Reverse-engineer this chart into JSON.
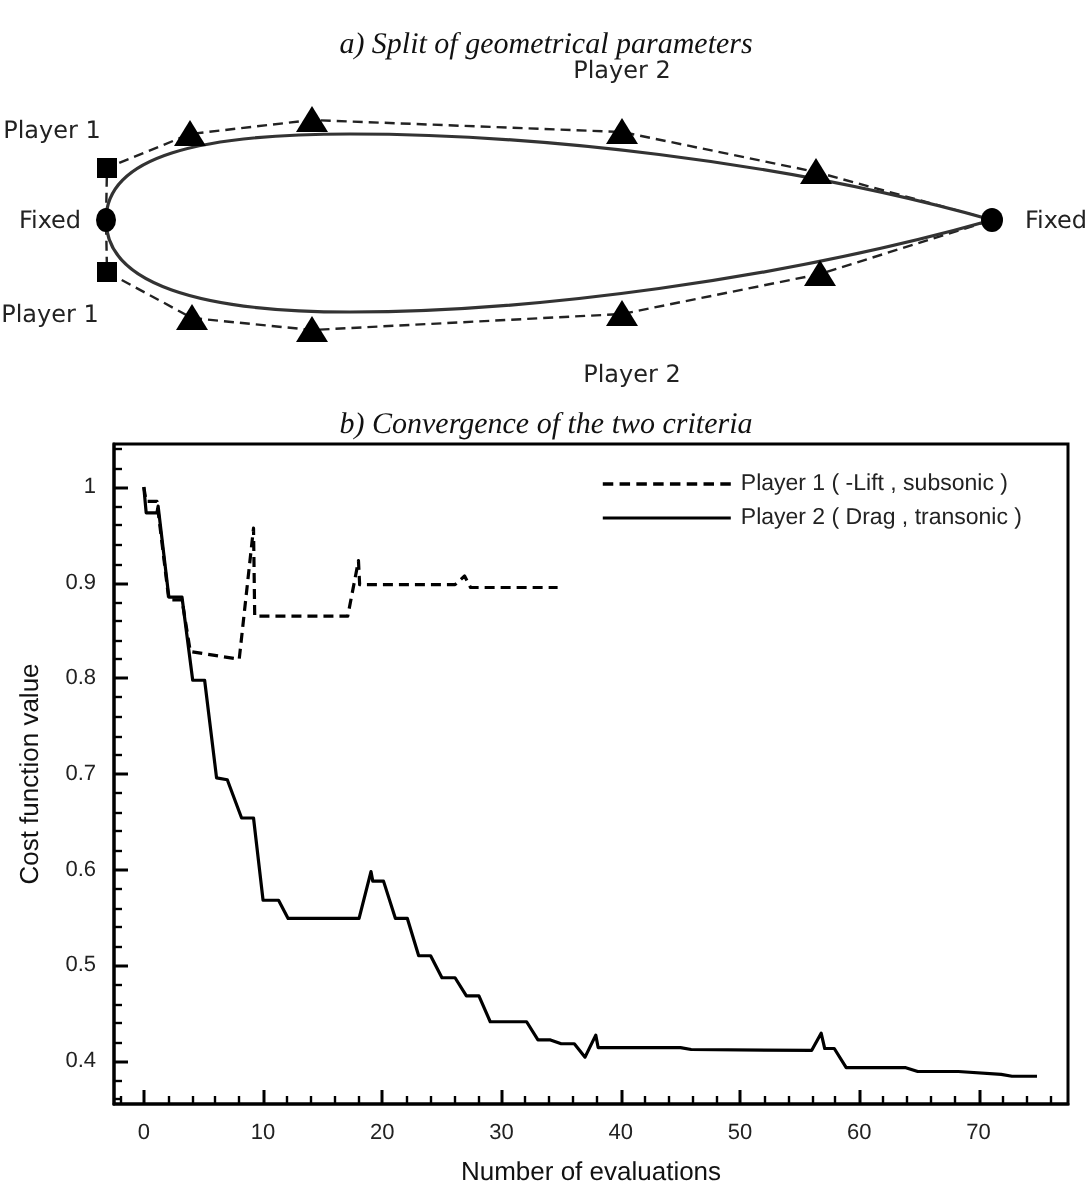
{
  "chart_data": [
    {
      "type": "other",
      "title": "a) Split of geometrical parameters",
      "annotations": [
        "Player 2",
        "Player 1",
        "Fixed",
        "Fixed",
        "Player 1",
        "Player 2"
      ]
    },
    {
      "type": "line",
      "title": "b) Convergence of the two criteria",
      "xlabel": "Number of evaluations",
      "ylabel": "Cost function value",
      "xlim": [
        -2.5,
        77.5
      ],
      "ylim": [
        0.355,
        1.045
      ],
      "xticks": [
        {
          "value": -2,
          "label": null
        },
        0,
        {
          "value": 2,
          "label": null
        },
        {
          "value": 4,
          "label": null
        },
        {
          "value": 6,
          "label": null
        },
        {
          "value": 8,
          "label": null
        },
        10,
        {
          "value": 12,
          "label": null
        },
        {
          "value": 14,
          "label": null
        },
        {
          "value": 16,
          "label": null
        },
        {
          "value": 18,
          "label": null
        },
        20,
        {
          "value": 22,
          "label": null
        },
        {
          "value": 24,
          "label": null
        },
        {
          "value": 26,
          "label": null
        },
        {
          "value": 28,
          "label": null
        },
        30,
        {
          "value": 32,
          "label": null
        },
        {
          "value": 34,
          "label": null
        },
        {
          "value": 36,
          "label": null
        },
        {
          "value": 38,
          "label": null
        },
        40,
        {
          "value": 42,
          "label": null
        },
        {
          "value": 44,
          "label": null
        },
        {
          "value": 46,
          "label": null
        },
        {
          "value": 48,
          "label": null
        },
        50,
        {
          "value": 52,
          "label": null
        },
        {
          "value": 54,
          "label": null
        },
        {
          "value": 56,
          "label": null
        },
        {
          "value": 58,
          "label": null
        },
        60,
        {
          "value": 62,
          "label": null
        },
        {
          "value": 64,
          "label": null
        },
        {
          "value": 66,
          "label": null
        },
        {
          "value": 68,
          "label": null
        },
        70,
        {
          "value": 72,
          "label": null
        },
        {
          "value": 74,
          "label": null
        },
        {
          "value": 76,
          "label": null
        }
      ],
      "yticks": [
        {
          "value": 0.36,
          "label": null
        },
        {
          "value": 0.38,
          "label": null
        },
        0.4,
        {
          "value": 0.42,
          "label": null
        },
        {
          "value": 0.44,
          "label": null
        },
        {
          "value": 0.46,
          "label": null
        },
        {
          "value": 0.48,
          "label": null
        },
        0.5,
        {
          "value": 0.52,
          "label": null
        },
        {
          "value": 0.54,
          "label": null
        },
        {
          "value": 0.56,
          "label": null
        },
        {
          "value": 0.58,
          "label": null
        },
        0.6,
        {
          "value": 0.62,
          "label": null
        },
        {
          "value": 0.64,
          "label": null
        },
        {
          "value": 0.66,
          "label": null
        },
        {
          "value": 0.68,
          "label": null
        },
        0.7,
        {
          "value": 0.72,
          "label": null
        },
        {
          "value": 0.74,
          "label": null
        },
        {
          "value": 0.76,
          "label": null
        },
        {
          "value": 0.78,
          "label": null
        },
        0.8,
        {
          "value": 0.82,
          "label": null
        },
        {
          "value": 0.84,
          "label": null
        },
        {
          "value": 0.86,
          "label": null
        },
        {
          "value": 0.88,
          "label": null
        },
        0.9,
        {
          "value": 0.92,
          "label": null
        },
        {
          "value": 0.94,
          "label": null
        },
        {
          "value": 0.96,
          "label": null
        },
        {
          "value": 0.98,
          "label": null
        },
        1,
        {
          "value": 1.02,
          "label": null
        },
        {
          "value": 1.04,
          "label": null
        }
      ],
      "legend": "top right",
      "series": [
        {
          "name": "Player 1 ( -Lift , subsonic )",
          "color": "#000000",
          "line_style": "dashed",
          "x": [
            0,
            0.2,
            1.1,
            2.1,
            3.2,
            3.9,
            8.0,
            9.2,
            9.3,
            17.1,
            18.0,
            18.1,
            26.1,
            26.9,
            27.4,
            34.7
          ],
          "values": [
            1.0,
            0.985,
            0.985,
            0.882,
            0.882,
            0.828,
            0.82,
            0.957,
            0.865,
            0.865,
            0.923,
            0.898,
            0.898,
            0.907,
            0.895,
            0.895
          ]
        },
        {
          "name": "Player 2 ( Drag , transonic )",
          "color": "#000000",
          "line_style": "solid",
          "x": [
            0,
            0.2,
            1.1,
            1.2,
            2.1,
            3.2,
            4.1,
            5.1,
            6.1,
            7.0,
            8.2,
            9.2,
            10.0,
            11.3,
            12.1,
            18.05,
            19.05,
            19.2,
            20.1,
            21.1,
            22.1,
            23.05,
            24.05,
            25.0,
            26.1,
            27.05,
            28.1,
            29.05,
            32.1,
            33.05,
            34.1,
            35.0,
            36.1,
            37.0,
            37.9,
            38.1,
            45.0,
            45.9,
            56.0,
            56.8,
            57.1,
            57.9,
            58.9,
            63.9,
            64.9,
            68.3,
            71.9,
            72.8,
            74.9
          ],
          "values": [
            1.0,
            0.973,
            0.973,
            0.98,
            0.885,
            0.885,
            0.798,
            0.798,
            0.696,
            0.694,
            0.654,
            0.654,
            0.568,
            0.568,
            0.549,
            0.549,
            0.598,
            0.588,
            0.588,
            0.549,
            0.549,
            0.51,
            0.51,
            0.487,
            0.487,
            0.468,
            0.468,
            0.441,
            0.441,
            0.422,
            0.422,
            0.418,
            0.418,
            0.404,
            0.427,
            0.414,
            0.414,
            0.412,
            0.411,
            0.429,
            0.413,
            0.413,
            0.393,
            0.393,
            0.389,
            0.389,
            0.386,
            0.384,
            0.384
          ]
        }
      ]
    }
  ]
}
